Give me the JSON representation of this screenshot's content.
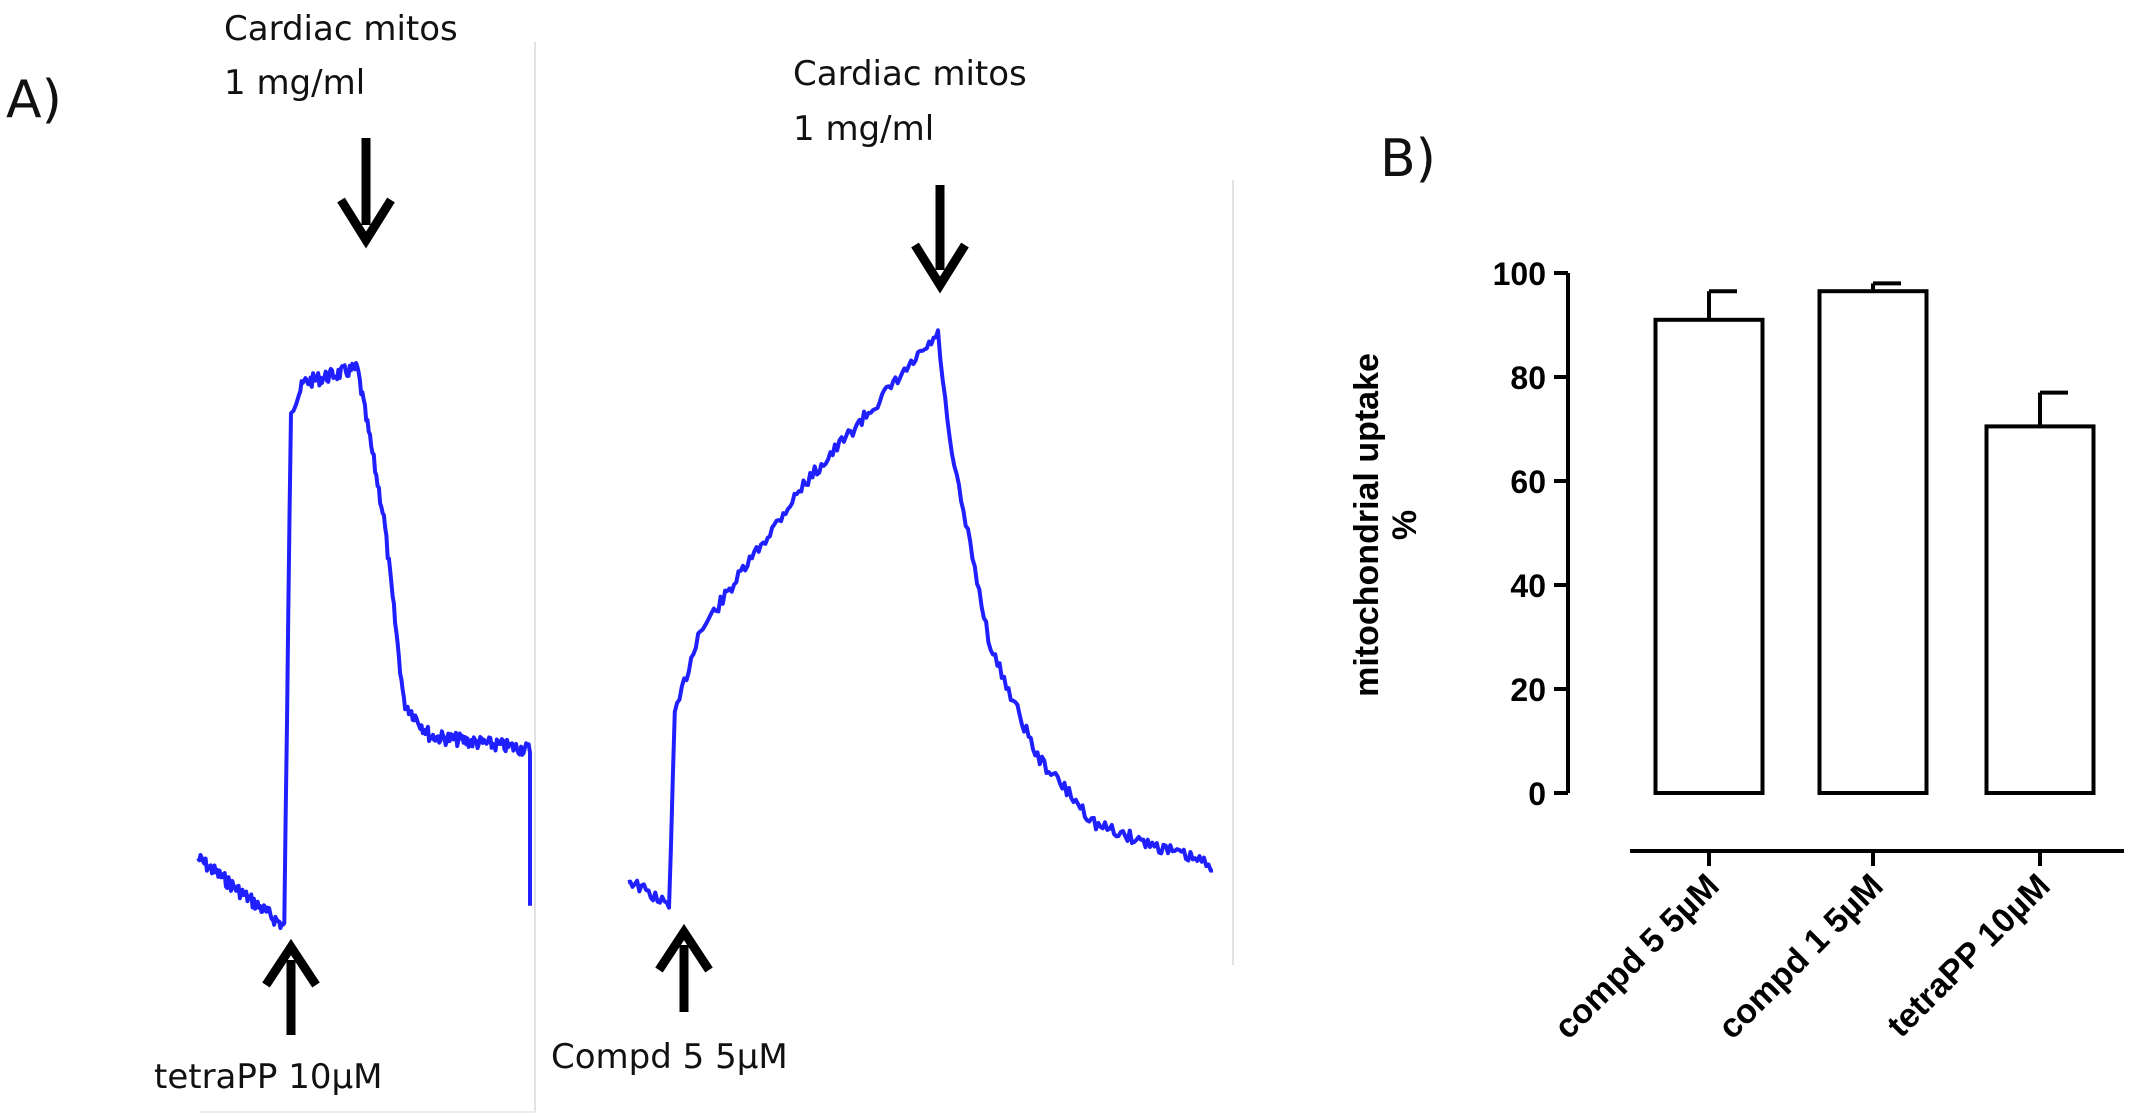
{
  "figure": {
    "panel_a_label": "A)",
    "panel_b_label": "B)"
  },
  "colors": {
    "trace": "#1f1fff",
    "bar_fill": "#ffffff",
    "bar_stroke": "#000000",
    "arrow": "#000000"
  },
  "chart_data": [
    {
      "type": "line",
      "panel": "A-left",
      "description_axes": "none",
      "series": [
        {
          "name": "tetraPP trace",
          "points_relative": [
            [
              0,
              0.12
            ],
            [
              0.26,
              0.02
            ],
            [
              0.28,
              0.78
            ],
            [
              0.32,
              0.82
            ],
            [
              0.48,
              0.84
            ],
            [
              0.56,
              0.62
            ],
            [
              0.62,
              0.35
            ],
            [
              0.7,
              0.3
            ],
            [
              1.0,
              0.28
            ],
            [
              1.0,
              0.06
            ]
          ]
        }
      ],
      "annotations": {
        "top_arrow_label_line1": "Cardiac mitos",
        "top_arrow_label_line2": "1 mg/ml",
        "bottom_arrow_label": "tetraPP 10µM"
      }
    },
    {
      "type": "line",
      "panel": "A-right",
      "description_axes": "none",
      "series": [
        {
          "name": "Compd 5 trace",
          "points_relative": [
            [
              0,
              0.06
            ],
            [
              0.07,
              0.02
            ],
            [
              0.08,
              0.3
            ],
            [
              0.12,
              0.42
            ],
            [
              0.3,
              0.64
            ],
            [
              0.53,
              0.86
            ],
            [
              0.55,
              0.7
            ],
            [
              0.62,
              0.4
            ],
            [
              0.7,
              0.24
            ],
            [
              0.8,
              0.14
            ],
            [
              1.0,
              0.08
            ]
          ]
        }
      ],
      "annotations": {
        "top_arrow_label_line1": "Cardiac mitos",
        "top_arrow_label_line2": "1 mg/ml",
        "bottom_arrow_label": "Compd 5 5µM"
      }
    },
    {
      "type": "bar",
      "panel": "B",
      "title": "",
      "xlabel": "",
      "ylabel_line1": "mitochondrial uptake",
      "ylabel_line2": "%",
      "ylim": [
        0,
        100
      ],
      "yticks": [
        0,
        20,
        40,
        60,
        80,
        100
      ],
      "ytick_labels": [
        "0",
        "20",
        "40",
        "60",
        "80",
        "100"
      ],
      "categories": [
        "compd 5 5µM",
        "compd 1 5µM",
        "tetraPP 10µM"
      ],
      "values": [
        91,
        96.5,
        70.5
      ],
      "errors": [
        5.5,
        1.5,
        6.5
      ]
    }
  ]
}
